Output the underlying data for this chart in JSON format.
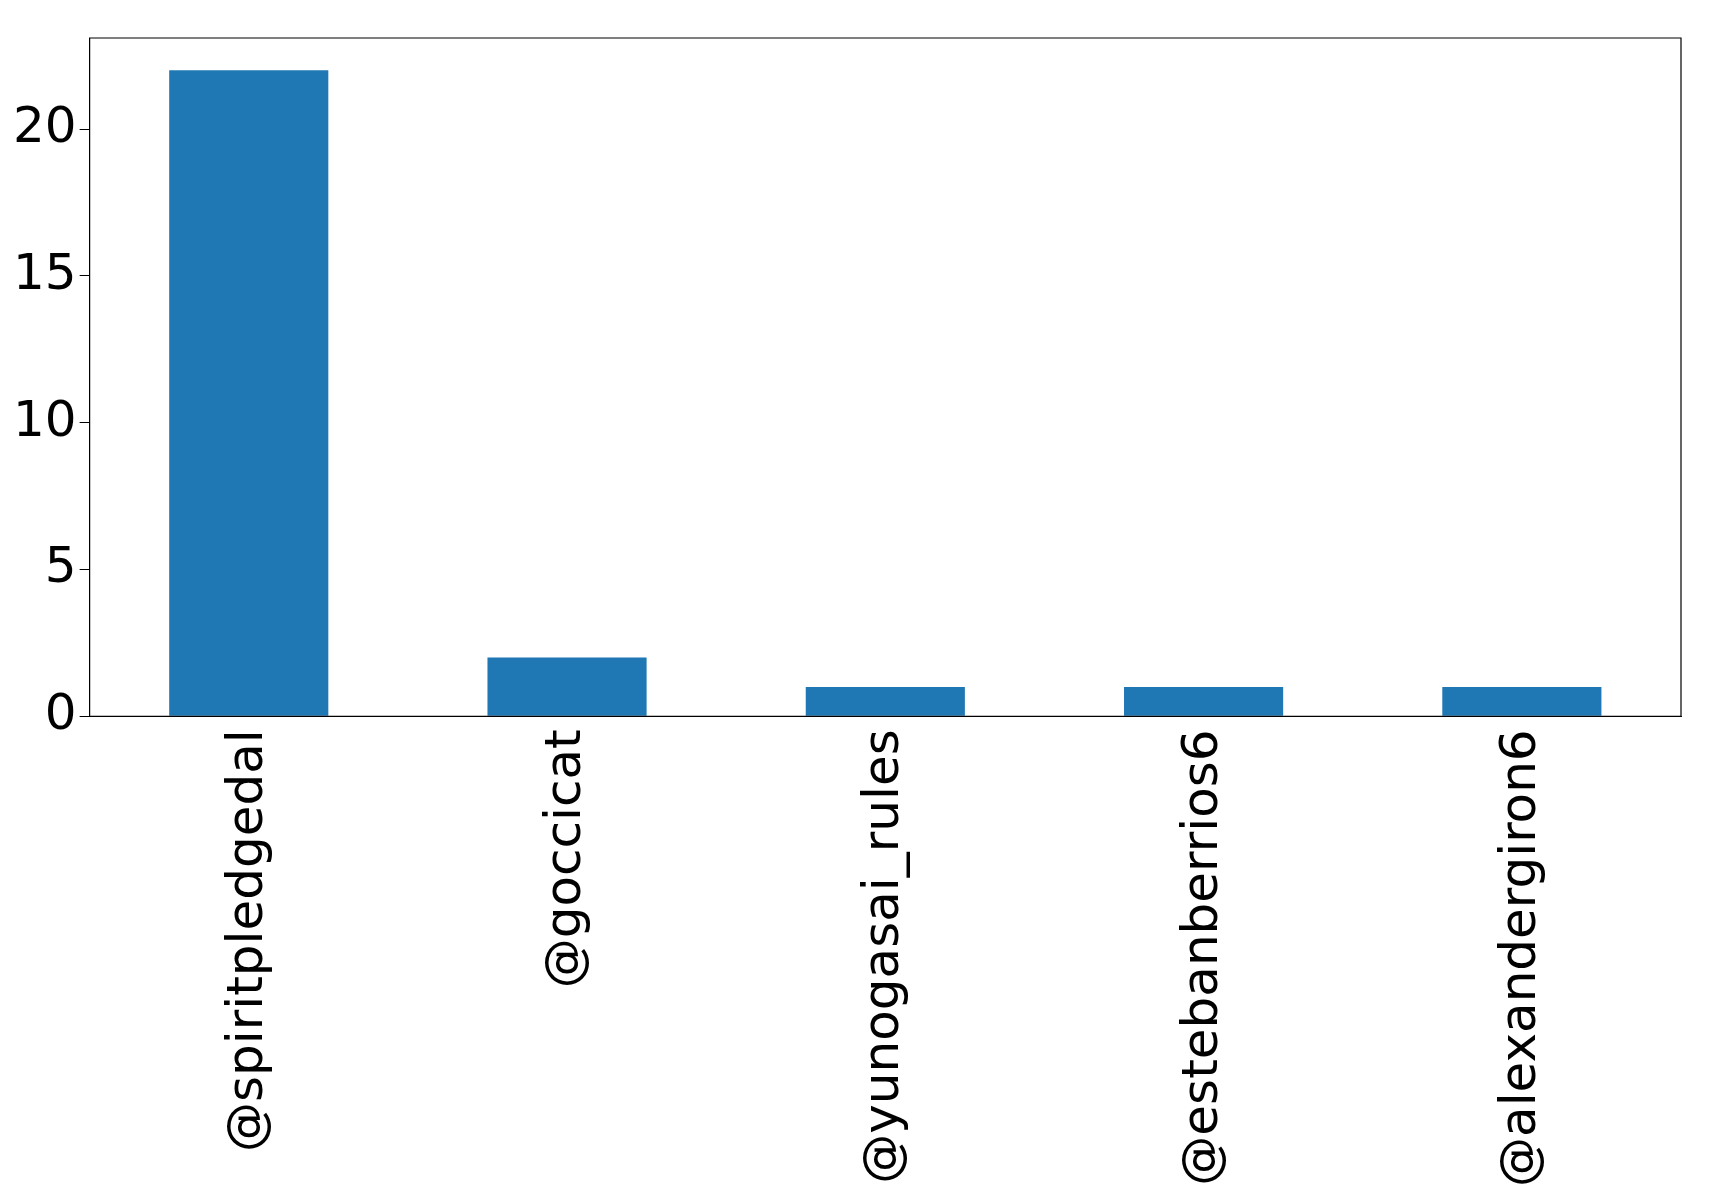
{
  "chart_data": {
    "type": "bar",
    "categories": [
      "@spiritpledgedal",
      "@goccicat",
      "@yunogasai_rules",
      "@estebanberrios6",
      "@alexandergiron6"
    ],
    "values": [
      22,
      2,
      1,
      1,
      1
    ],
    "color": "#1f77b4",
    "ylim": [
      0,
      23.1
    ],
    "yticks": [
      0,
      5,
      10,
      15,
      20
    ],
    "grid": false,
    "legend": false
  }
}
